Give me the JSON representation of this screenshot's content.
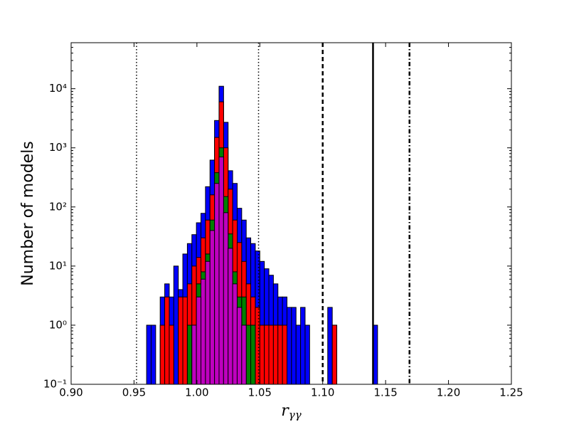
{
  "chart_data": {
    "type": "histogram",
    "xlabel": "rγγ",
    "ylabel": "Number of models",
    "bins": [
      0.96,
      0.9636,
      0.9672,
      0.9708,
      0.9744,
      0.978,
      0.9816,
      0.9852,
      0.9888,
      0.9924,
      0.996,
      0.9996,
      1.0032,
      1.0068,
      1.0104,
      1.014,
      1.0176,
      1.0212,
      1.0248,
      1.0284,
      1.032,
      1.0356,
      1.0392,
      1.0428,
      1.0464,
      1.05,
      1.0536,
      1.0572,
      1.0608,
      1.0644,
      1.068,
      1.0716,
      1.0752,
      1.0788,
      1.0824,
      1.086,
      1.0896,
      1.0932,
      1.0968,
      1.1004,
      1.104,
      1.1076,
      1.1112,
      1.1148,
      1.1184,
      1.122,
      1.1256,
      1.1292,
      1.1328,
      1.1364,
      1.14,
      1.1436
    ],
    "series": [
      {
        "color": "#0000ff",
        "values": [
          1,
          1,
          0,
          3,
          5,
          3,
          10,
          4,
          16,
          24,
          34,
          54,
          78,
          220,
          620,
          2900,
          11000,
          2700,
          410,
          250,
          95,
          60,
          30,
          24,
          18,
          12,
          9,
          7,
          5,
          3,
          3,
          2,
          2,
          1,
          2,
          1,
          0,
          0,
          0,
          0,
          2,
          1,
          0,
          0,
          0,
          0,
          0,
          0,
          0,
          0,
          1
        ]
      },
      {
        "color": "#ff0000",
        "values": [
          0,
          0,
          0,
          1,
          3,
          1,
          0,
          3,
          3,
          5,
          10,
          14,
          30,
          60,
          160,
          1500,
          6000,
          1000,
          200,
          60,
          25,
          12,
          5,
          3,
          2,
          1,
          1,
          1,
          1,
          1,
          1,
          0,
          0,
          0,
          0,
          0,
          0,
          0,
          0,
          0,
          0,
          1,
          0,
          0,
          0,
          0,
          0,
          0,
          0,
          0,
          0
        ]
      },
      {
        "color": "#008000",
        "values": [
          0,
          0,
          0,
          0,
          0,
          0,
          0,
          0,
          0,
          1,
          1,
          5,
          8,
          16,
          60,
          380,
          1000,
          150,
          35,
          8,
          3,
          3,
          1,
          1,
          0,
          0,
          0,
          0,
          0,
          0,
          0,
          0,
          0,
          0,
          0,
          0,
          0,
          0,
          0,
          0,
          0,
          0,
          0,
          0,
          0,
          0,
          0,
          0,
          0,
          0,
          0
        ]
      },
      {
        "color": "#bf00bf",
        "values": [
          0,
          0,
          0,
          0,
          0,
          0,
          0,
          0,
          0,
          0,
          1,
          3,
          6,
          12,
          40,
          250,
          700,
          80,
          20,
          5,
          2,
          1,
          0,
          0,
          0,
          0,
          0,
          0,
          0,
          0,
          0,
          0,
          0,
          0,
          0,
          0,
          0,
          0,
          0,
          0,
          0,
          0,
          0,
          0,
          0,
          0,
          0,
          0,
          0,
          0,
          0
        ]
      }
    ],
    "reference_lines": [
      {
        "value": 0.952,
        "style": "dotted"
      },
      {
        "value": 1.049,
        "style": "dotted"
      },
      {
        "value": 1.1,
        "style": "dashed"
      },
      {
        "value": 1.14,
        "style": "solid"
      },
      {
        "value": 1.169,
        "style": "dashdot"
      }
    ],
    "xlim": [
      0.9,
      1.25
    ],
    "xticks": [
      {
        "value": 0.9,
        "label": "0.90"
      },
      {
        "value": 0.95,
        "label": "0.95"
      },
      {
        "value": 1.0,
        "label": "1.00"
      },
      {
        "value": 1.05,
        "label": "1.05"
      },
      {
        "value": 1.1,
        "label": "1.10"
      },
      {
        "value": 1.15,
        "label": "1.15"
      },
      {
        "value": 1.2,
        "label": "1.20"
      },
      {
        "value": 1.25,
        "label": "1.25"
      }
    ],
    "ylim": [
      0.1,
      60000
    ],
    "log_y": true,
    "yticks": [
      {
        "value": 0.1,
        "label": "10⁻¹"
      },
      {
        "value": 1,
        "label": "10⁰"
      },
      {
        "value": 10,
        "label": "10¹"
      },
      {
        "value": 100,
        "label": "10²"
      },
      {
        "value": 1000,
        "label": "10³"
      },
      {
        "value": 10000,
        "label": "10⁴"
      }
    ]
  }
}
